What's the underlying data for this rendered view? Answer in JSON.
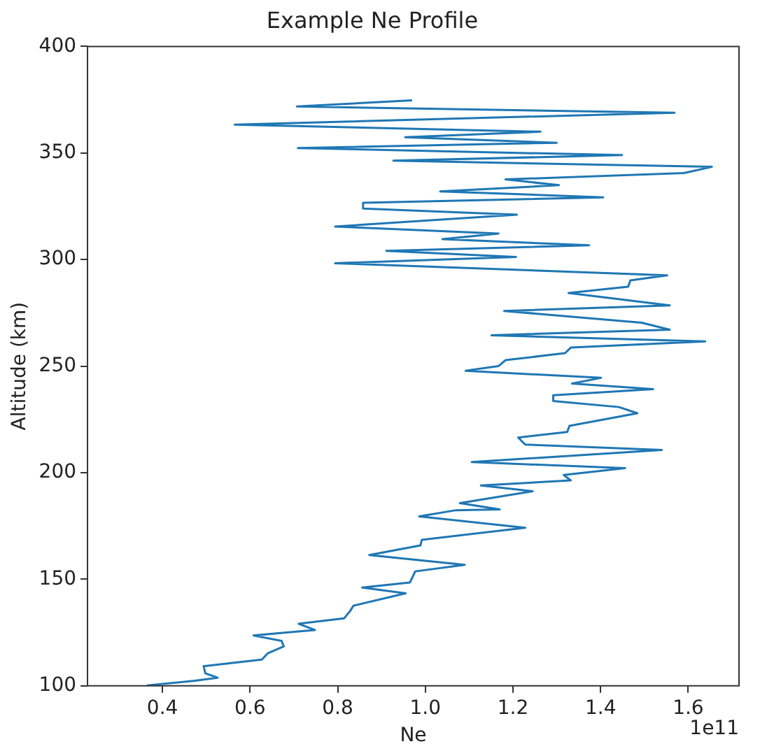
{
  "chart_data": {
    "type": "line",
    "title": "Example Ne Profile",
    "xlabel": "Ne",
    "ylabel": "Altitude (km)",
    "annotations": [
      "1e11"
    ],
    "xlim": [
      0.229,
      1.716
    ],
    "xticks": [
      {
        "value": 0.4,
        "label": "0.4"
      },
      {
        "value": 0.6,
        "label": "0.6"
      },
      {
        "value": 0.8,
        "label": "0.8"
      },
      {
        "value": 1,
        "label": "1.0"
      },
      {
        "value": 1.2,
        "label": "1.2"
      },
      {
        "value": 1.4,
        "label": "1.4"
      },
      {
        "value": 1.6,
        "label": "1.6"
      }
    ],
    "ylim": [
      100,
      400
    ],
    "yticks": [
      100,
      150,
      200,
      250,
      300,
      350,
      400
    ],
    "x": [
      0.365,
      0.474,
      0.526,
      0.498,
      0.494,
      0.627,
      0.64,
      0.677,
      0.672,
      0.608,
      0.688,
      0.748,
      0.711,
      0.815,
      0.828,
      0.836,
      0.955,
      0.856,
      0.965,
      0.977,
      1.09,
      0.872,
      0.989,
      0.992,
      1.228,
      0.986,
      1.07,
      1.17,
      1.079,
      1.245,
      1.127,
      1.332,
      1.316,
      1.456,
      1.106,
      1.54,
      1.228,
      1.212,
      1.324,
      1.329,
      1.484,
      1.442,
      1.292,
      1.292,
      1.52,
      1.335,
      1.401,
      1.092,
      1.167,
      1.183,
      1.319,
      1.332,
      1.639,
      1.151,
      1.558,
      1.494,
      1.18,
      1.558,
      1.327,
      1.463,
      1.468,
      1.552,
      0.794,
      1.207,
      0.911,
      1.374,
      1.039,
      1.167,
      0.794,
      1.209,
      0.858,
      0.858,
      1.406,
      1.034,
      1.305,
      1.183,
      1.59,
      1.654,
      0.927,
      1.449,
      0.709,
      1.3,
      0.954,
      1.263,
      0.565,
      1.569,
      0.707,
      0.97
    ],
    "series": [
      {
        "color": "#1f77b4",
        "values": [
          100.2,
          102.4,
          103.8,
          105.9,
          109.2,
          112.3,
          115.2,
          118.5,
          121.1,
          123.6,
          125.1,
          126.2,
          129.1,
          131.7,
          135,
          137.6,
          143.4,
          146.1,
          148.5,
          153.7,
          156.8,
          161.4,
          165.9,
          168.5,
          174.2,
          179.5,
          182.4,
          182.8,
          185.7,
          191.3,
          194,
          196.4,
          198.9,
          202.1,
          205,
          210.7,
          213.2,
          216.5,
          219.1,
          222,
          227.9,
          230.8,
          233.6,
          236.3,
          239.2,
          241.8,
          244.5,
          247.8,
          250,
          252.8,
          256.1,
          258.7,
          261.6,
          264.5,
          267.1,
          270.4,
          275.9,
          278.5,
          284.3,
          287.3,
          290.2,
          292.6,
          298.3,
          301.2,
          304.1,
          306.7,
          309.6,
          312.2,
          315.5,
          321.1,
          323.9,
          326.6,
          329.2,
          332,
          334.9,
          337.6,
          340.6,
          343.5,
          346.4,
          349,
          352.3,
          354.8,
          357.4,
          360,
          363.3,
          368.9,
          371.8,
          374.7
        ]
      }
    ],
    "marker": "none",
    "line_style": "solid",
    "legend": false
  }
}
